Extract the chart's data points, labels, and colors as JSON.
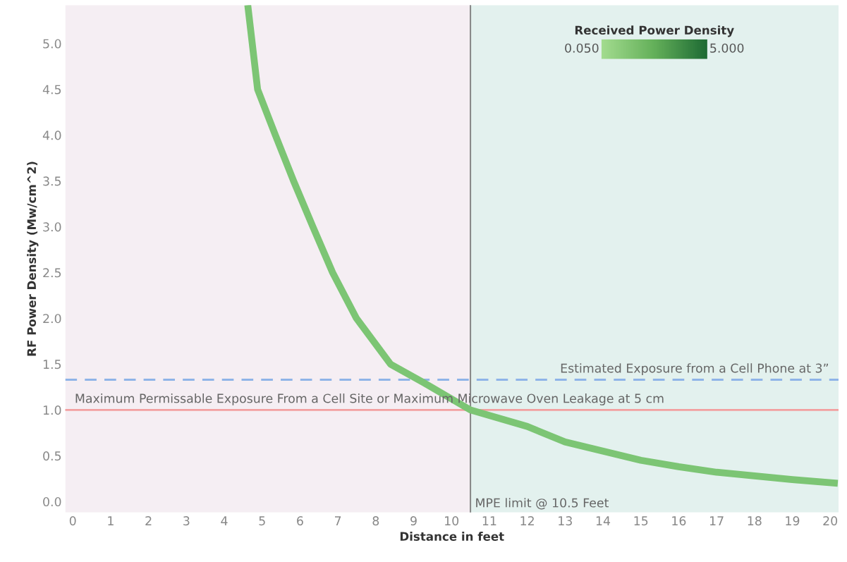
{
  "chart_data": {
    "type": "line",
    "xlabel": "Distance in feet",
    "ylabel": "RF Power Density (Mw/cm^2)",
    "clabel": "Received Power Density",
    "annotations": [
      "0.050",
      "5.000"
    ],
    "series": [
      {
        "color": "#7cc574",
        "x": [
          4.62,
          4.88,
          5.35,
          5.83,
          6.34,
          6.86,
          7.49,
          8.39,
          9.26,
          10.5,
          12,
          13,
          14,
          15,
          16,
          17,
          18,
          19,
          20.2
        ],
        "values": [
          5.42,
          4.5,
          4.0,
          3.5,
          3.0,
          2.5,
          2.0,
          1.5,
          1.3,
          1.0,
          0.82,
          0.65,
          0.55,
          0.45,
          0.38,
          0.32,
          0.28,
          0.24,
          0.2
        ]
      }
    ],
    "xlim": [
      -0.2,
      20.22
    ],
    "ylim": [
      -0.12,
      5.42
    ],
    "xticks": [
      0,
      1,
      2,
      3,
      4,
      5,
      6,
      7,
      8,
      9,
      10,
      11,
      12,
      13,
      14,
      15,
      16,
      17,
      18,
      19,
      20
    ],
    "yticks": [
      {
        "value": 0,
        "label": "0.0"
      },
      {
        "value": 0.5,
        "label": "0.5"
      },
      {
        "value": 1,
        "label": "1.0"
      },
      {
        "value": 1.5,
        "label": "1.5"
      },
      {
        "value": 2,
        "label": "2.0"
      },
      {
        "value": 2.5,
        "label": "2.5"
      },
      {
        "value": 3,
        "label": "3.0"
      },
      {
        "value": 3.5,
        "label": "3.5"
      },
      {
        "value": 4,
        "label": "4.0"
      },
      {
        "value": 4.5,
        "label": "4.5"
      },
      {
        "value": 5,
        "label": "5.0"
      }
    ],
    "bands": [
      {
        "axis": "x",
        "from": -0.2,
        "to": 10.5,
        "color": "#f5eef3"
      },
      {
        "axis": "x",
        "from": 10.5,
        "to": 20.22,
        "color": "#e3f1ee"
      }
    ],
    "ref_lines": [
      {
        "axis": "y",
        "value": 1.33,
        "label": "Estimated Exposure from a Cell Phone at 3”",
        "color": "#8fb4e8",
        "line_style": "dashed"
      },
      {
        "axis": "y",
        "value": 1.0,
        "label": "Maximum Permissable Exposure From a Cell Site or Maximum Microwave Oven Leakage at 5 cm",
        "color": "#f2a0a0",
        "line_style": "solid"
      },
      {
        "axis": "x",
        "value": 10.5,
        "label": "MPE limit @ 10.5 Feet",
        "color": "#8a8a8a",
        "line_style": "solid"
      }
    ],
    "grid": false
  }
}
